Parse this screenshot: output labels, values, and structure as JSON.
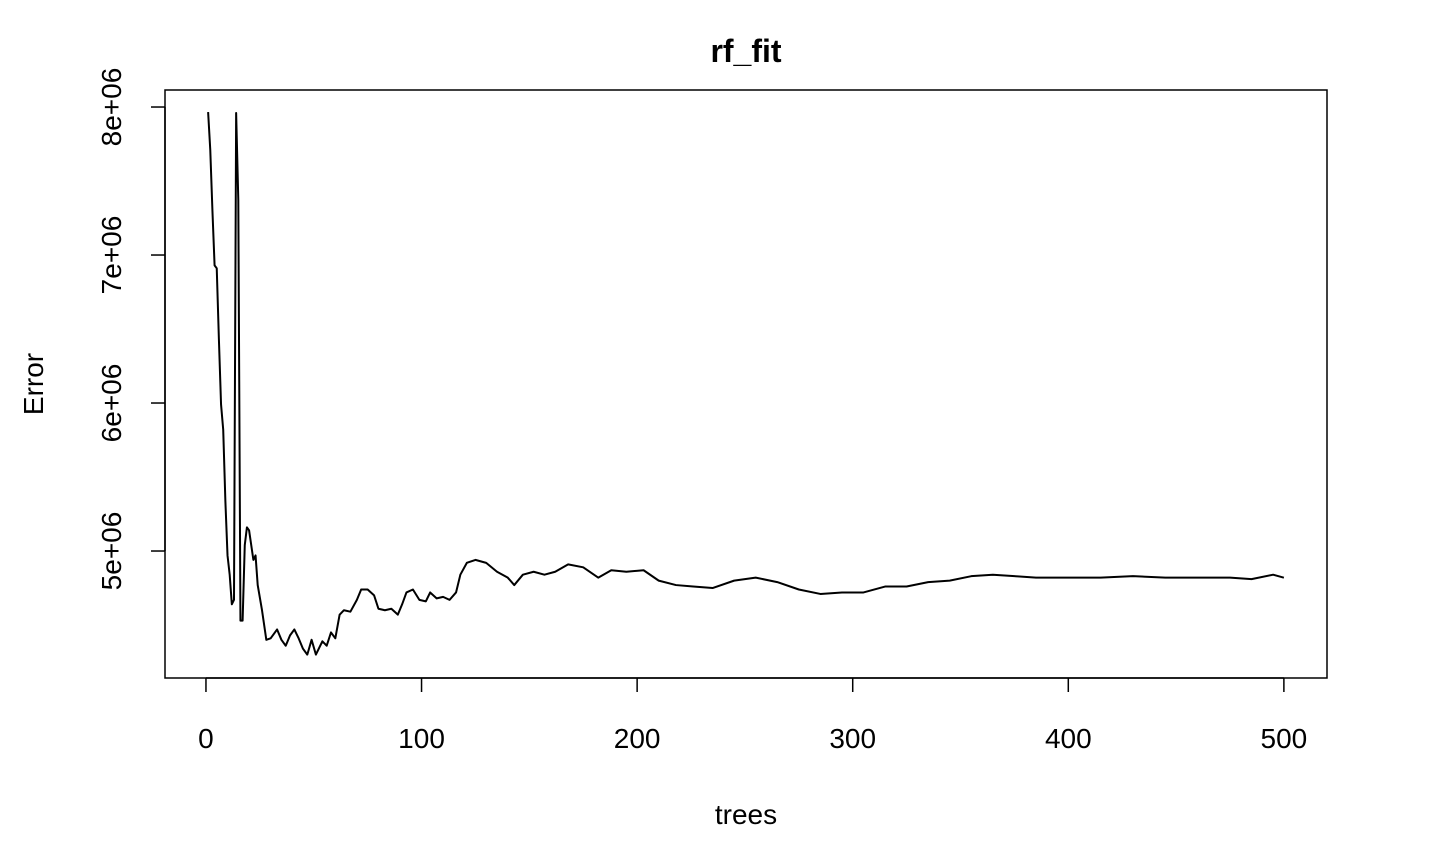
{
  "chart_data": {
    "type": "line",
    "title": "rf_fit",
    "x_label": "trees",
    "y_label": "Error",
    "color": "#000000",
    "x": [
      1,
      2,
      3,
      4,
      5,
      6,
      7,
      8,
      9,
      10,
      11,
      12,
      13,
      14,
      15,
      16,
      17,
      18,
      19,
      20,
      22,
      23,
      24,
      26,
      28,
      30,
      33,
      35,
      37,
      39,
      41,
      43,
      45,
      47,
      49,
      51,
      54,
      56,
      58,
      60,
      62,
      64,
      67,
      70,
      72,
      75,
      78,
      80,
      83,
      86,
      89,
      91,
      93,
      96,
      99,
      102,
      104,
      107,
      110,
      113,
      116,
      118,
      121,
      125,
      130,
      135,
      140,
      143,
      147,
      152,
      157,
      162,
      168,
      175,
      182,
      188,
      195,
      203,
      210,
      218,
      226,
      235,
      245,
      255,
      265,
      275,
      285,
      295,
      305,
      315,
      325,
      335,
      345,
      355,
      365,
      375,
      385,
      400,
      415,
      430,
      445,
      460,
      475,
      485,
      495,
      500
    ],
    "values": [
      7966000,
      7710000,
      7300000,
      6930000,
      6910000,
      6430000,
      5990000,
      5820000,
      5340000,
      4970000,
      4840000,
      4640000,
      4670000,
      7960000,
      7370000,
      4530000,
      4530000,
      5040000,
      5160000,
      5140000,
      4940000,
      4970000,
      4770000,
      4600000,
      4400000,
      4410000,
      4470000,
      4400000,
      4360000,
      4430000,
      4470000,
      4410000,
      4340000,
      4300000,
      4400000,
      4300000,
      4390000,
      4360000,
      4450000,
      4410000,
      4570000,
      4600000,
      4590000,
      4670000,
      4740000,
      4740000,
      4700000,
      4610000,
      4600000,
      4610000,
      4570000,
      4640000,
      4720000,
      4740000,
      4670000,
      4660000,
      4720000,
      4680000,
      4690000,
      4670000,
      4720000,
      4840000,
      4920000,
      4940000,
      4920000,
      4860000,
      4820000,
      4770000,
      4840000,
      4860000,
      4840000,
      4860000,
      4910000,
      4890000,
      4820000,
      4870000,
      4860000,
      4870000,
      4800000,
      4770000,
      4760000,
      4750000,
      4800000,
      4820000,
      4790000,
      4740000,
      4710000,
      4720000,
      4720000,
      4760000,
      4760000,
      4790000,
      4800000,
      4830000,
      4840000,
      4830000,
      4820000,
      4820000,
      4820000,
      4830000,
      4820000,
      4820000,
      4820000,
      4810000,
      4840000,
      4820000
    ],
    "xlim": [
      -19,
      520
    ],
    "ylim": [
      4142000,
      8115000
    ],
    "xticks": [
      0,
      100,
      200,
      300,
      400,
      500
    ],
    "yticks": [
      {
        "value": 5000000,
        "label": "5e+06"
      },
      {
        "value": 6000000,
        "label": "6e+06"
      },
      {
        "value": 7000000,
        "label": "7e+06"
      },
      {
        "value": 8000000,
        "label": "8e+06"
      }
    ]
  }
}
